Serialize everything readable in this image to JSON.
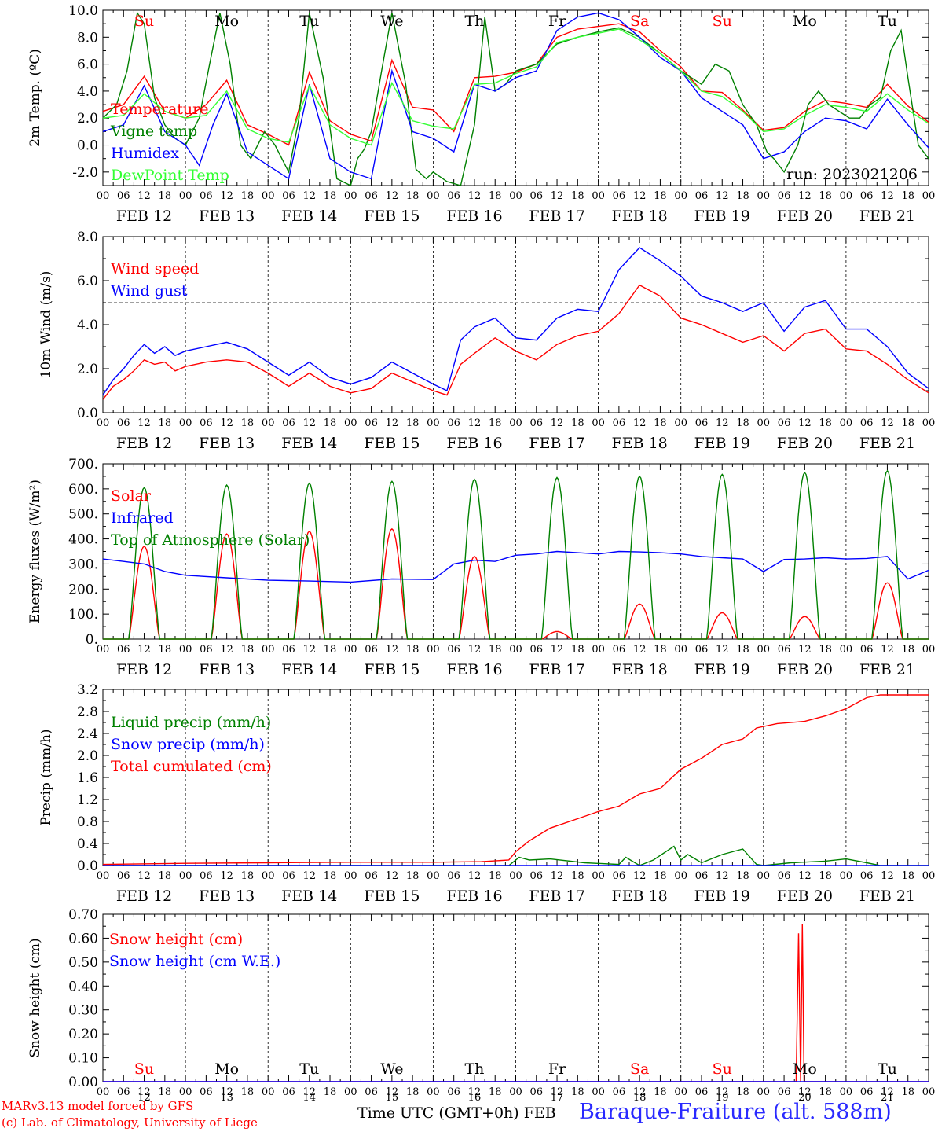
{
  "meta": {
    "run_label": "run: 2023021206",
    "credit_line1": "MARv3.13 model forced by GFS",
    "credit_line2": "(c) Lab. of Climatology, University of Liege",
    "xlabel": "Time UTC (GMT+0h)",
    "month_label": "FEB",
    "station": "Baraque-Fraiture (alt. 588m)"
  },
  "colors": {
    "red": "#ff0000",
    "blue": "#0000ff",
    "green": "#008000",
    "lightgreen": "#33ff33",
    "grey": "#555555",
    "black": "#000000",
    "title_blue": "#2a2aff"
  },
  "chart_data": [
    {
      "type": "line",
      "ylabel": "2m Temp. (ºC)",
      "ylim": [
        -3,
        10
      ],
      "yticks": [
        "-2.0",
        "0.0",
        "2.0",
        "4.0",
        "6.0",
        "8.0",
        "10.0"
      ],
      "reference_line": 0,
      "x_unit": "hours since FEB 12 00 UTC",
      "weekday_labels": [
        {
          "text": "Su",
          "color": "red"
        },
        {
          "text": "Mo",
          "color": "black"
        },
        {
          "text": "Tu",
          "color": "black"
        },
        {
          "text": "We",
          "color": "black"
        },
        {
          "text": "Th",
          "color": "black"
        },
        {
          "text": "Fr",
          "color": "black"
        },
        {
          "text": "Sa",
          "color": "red"
        },
        {
          "text": "Su",
          "color": "red"
        },
        {
          "text": "Mo",
          "color": "black"
        },
        {
          "text": "Tu",
          "color": "black"
        }
      ],
      "series": [
        {
          "name": "Temperature",
          "color": "red",
          "x": [
            0,
            6,
            12,
            18,
            24,
            30,
            36,
            42,
            48,
            54,
            60,
            66,
            72,
            78,
            84,
            90,
            96,
            102,
            108,
            114,
            120,
            126,
            132,
            138,
            144,
            150,
            156,
            162,
            168,
            174,
            180,
            186,
            192,
            198,
            204,
            210,
            216,
            222,
            228,
            234,
            240
          ],
          "y": [
            2.5,
            3.0,
            5.1,
            2.5,
            2.0,
            3.0,
            4.8,
            1.5,
            0.8,
            0.0,
            5.4,
            1.8,
            0.8,
            0.3,
            6.3,
            2.8,
            2.6,
            1.0,
            5.0,
            5.1,
            5.4,
            6.0,
            8.0,
            8.6,
            8.8,
            9.0,
            8.4,
            7.0,
            5.8,
            4.0,
            3.9,
            2.6,
            1.1,
            1.3,
            2.5,
            3.3,
            3.1,
            2.8,
            4.5,
            2.9,
            1.7
          ]
        },
        {
          "name": "Vigne temp",
          "color": "green",
          "x": [
            0,
            4,
            7,
            10,
            12,
            15,
            18,
            21,
            24,
            28,
            31,
            34,
            37,
            40,
            43,
            47,
            50,
            54,
            57,
            60,
            64,
            68,
            72,
            74,
            76,
            78,
            81,
            84,
            88,
            91,
            94,
            96,
            100,
            104,
            108,
            111,
            114,
            117,
            120,
            126,
            132,
            138,
            144,
            150,
            156,
            162,
            168,
            174,
            178,
            182,
            186,
            190,
            193,
            195,
            198,
            202,
            205,
            208,
            211,
            214,
            217,
            220,
            223,
            226,
            229,
            232,
            234,
            237,
            240
          ],
          "y": [
            2.0,
            3.0,
            5.5,
            9.8,
            9.0,
            3.5,
            1.5,
            0.5,
            0.0,
            2.0,
            6.0,
            9.8,
            6.0,
            0.0,
            -1.0,
            1.0,
            0.0,
            -2.0,
            2.0,
            9.8,
            5.0,
            -2.5,
            -3.0,
            -1.0,
            -0.3,
            1.0,
            5.5,
            9.8,
            4.5,
            -1.8,
            -2.5,
            -2.0,
            -2.7,
            -3.0,
            1.5,
            9.5,
            4.0,
            4.5,
            5.5,
            6.0,
            7.5,
            8.0,
            8.4,
            8.7,
            8.0,
            6.8,
            5.5,
            4.5,
            6.0,
            5.5,
            3.0,
            1.5,
            -0.5,
            -1.0,
            -2.0,
            0.0,
            3.0,
            4.0,
            3.0,
            2.5,
            2.0,
            2.0,
            3.0,
            3.5,
            7.0,
            8.5,
            5.0,
            0.0,
            -1.0
          ]
        },
        {
          "name": "Humidex",
          "color": "blue",
          "x": [
            0,
            6,
            12,
            18,
            24,
            28,
            32,
            36,
            42,
            48,
            54,
            60,
            66,
            72,
            78,
            84,
            90,
            96,
            102,
            108,
            114,
            120,
            126,
            132,
            138,
            144,
            150,
            156,
            162,
            168,
            174,
            180,
            186,
            192,
            198,
            204,
            210,
            216,
            222,
            228,
            234,
            240
          ],
          "y": [
            1.0,
            1.5,
            4.4,
            1.0,
            0.0,
            -1.5,
            1.5,
            3.8,
            -0.5,
            -1.5,
            -2.5,
            4.5,
            -1.0,
            -2.0,
            -2.5,
            5.5,
            1.0,
            0.5,
            -0.5,
            4.5,
            4.0,
            5.0,
            5.5,
            8.5,
            9.5,
            9.8,
            9.3,
            8.0,
            6.5,
            5.5,
            3.5,
            2.5,
            1.5,
            -1.0,
            -0.5,
            1.0,
            2.0,
            1.8,
            1.2,
            3.4,
            1.5,
            -0.2
          ]
        },
        {
          "name": "DewPoint Temp",
          "color": "lightgreen",
          "x": [
            0,
            6,
            12,
            18,
            24,
            30,
            36,
            42,
            48,
            54,
            60,
            66,
            72,
            78,
            84,
            90,
            96,
            102,
            108,
            114,
            120,
            126,
            132,
            138,
            144,
            150,
            156,
            162,
            168,
            174,
            180,
            186,
            192,
            198,
            204,
            210,
            216,
            222,
            228,
            234,
            240
          ],
          "y": [
            2.0,
            2.2,
            3.8,
            2.5,
            2.0,
            2.2,
            4.0,
            1.2,
            0.5,
            0.2,
            4.4,
            1.5,
            0.5,
            0.0,
            4.6,
            1.8,
            1.4,
            1.2,
            4.5,
            4.6,
            5.3,
            5.8,
            7.6,
            8.0,
            8.3,
            8.6,
            7.8,
            6.8,
            5.5,
            4.0,
            3.6,
            2.5,
            1.0,
            1.2,
            2.2,
            3.0,
            2.8,
            2.5,
            3.8,
            2.6,
            1.6
          ]
        }
      ],
      "legend": [
        "Temperature",
        "Vigne temp",
        "Humidex",
        "DewPoint Temp"
      ],
      "legend_placement": "left"
    },
    {
      "type": "line",
      "ylabel": "10m Wind (m/s)",
      "ylim": [
        0,
        8
      ],
      "yticks": [
        "0.0",
        "2.0",
        "4.0",
        "6.0",
        "8.0"
      ],
      "reference_line": 5,
      "x_unit": "hours since FEB 12 00 UTC",
      "series": [
        {
          "name": "Wind speed",
          "color": "red",
          "x": [
            0,
            3,
            6,
            9,
            12,
            15,
            18,
            21,
            24,
            30,
            36,
            42,
            48,
            54,
            60,
            66,
            72,
            78,
            84,
            90,
            96,
            100,
            104,
            108,
            114,
            120,
            126,
            132,
            138,
            144,
            150,
            156,
            162,
            168,
            174,
            180,
            186,
            192,
            198,
            204,
            210,
            216,
            222,
            228,
            234,
            240
          ],
          "y": [
            0.6,
            1.2,
            1.5,
            1.9,
            2.4,
            2.2,
            2.3,
            1.9,
            2.1,
            2.3,
            2.4,
            2.3,
            1.8,
            1.2,
            1.8,
            1.2,
            0.9,
            1.1,
            1.8,
            1.4,
            1.0,
            0.8,
            2.2,
            2.7,
            3.4,
            2.8,
            2.4,
            3.1,
            3.5,
            3.7,
            4.5,
            5.8,
            5.3,
            4.3,
            4.0,
            3.6,
            3.2,
            3.5,
            2.8,
            3.6,
            3.8,
            2.9,
            2.8,
            2.2,
            1.5,
            0.9
          ]
        },
        {
          "name": "Wind gust",
          "color": "blue",
          "x": [
            0,
            3,
            6,
            9,
            12,
            15,
            18,
            21,
            24,
            30,
            36,
            42,
            48,
            54,
            60,
            66,
            72,
            78,
            84,
            90,
            96,
            100,
            104,
            108,
            114,
            120,
            126,
            132,
            138,
            144,
            150,
            156,
            162,
            168,
            174,
            180,
            186,
            192,
            198,
            204,
            210,
            216,
            222,
            228,
            234,
            240
          ],
          "y": [
            0.8,
            1.5,
            2.0,
            2.6,
            3.1,
            2.7,
            3.0,
            2.6,
            2.8,
            3.0,
            3.2,
            2.9,
            2.3,
            1.7,
            2.3,
            1.6,
            1.3,
            1.6,
            2.3,
            1.8,
            1.3,
            1.0,
            3.3,
            3.9,
            4.3,
            3.4,
            3.3,
            4.3,
            4.7,
            4.6,
            6.5,
            7.5,
            6.9,
            6.2,
            5.3,
            5.0,
            4.6,
            5.0,
            3.7,
            4.8,
            5.1,
            3.8,
            3.8,
            3.0,
            1.8,
            1.1
          ]
        }
      ],
      "legend": [
        "Wind speed",
        "Wind gust"
      ],
      "legend_placement": "top-left"
    },
    {
      "type": "line",
      "ylabel": "Energy fluxes (W/m²)",
      "ylim": [
        0,
        700
      ],
      "yticks": [
        "0.",
        "100.",
        "200.",
        "300.",
        "400.",
        "500.",
        "600.",
        "700."
      ],
      "x_unit": "hours since FEB 12 00 UTC",
      "series": [
        {
          "name": "Solar",
          "color": "red",
          "daily_peak": [
            370,
            420,
            430,
            440,
            330,
            30,
            140,
            105,
            90,
            225
          ]
        },
        {
          "name": "Infrared",
          "color": "blue",
          "x": [
            0,
            6,
            12,
            18,
            24,
            36,
            48,
            60,
            72,
            84,
            96,
            102,
            108,
            114,
            120,
            126,
            132,
            138,
            144,
            150,
            156,
            162,
            168,
            174,
            180,
            186,
            192,
            198,
            204,
            210,
            216,
            222,
            228,
            234,
            240
          ],
          "y": [
            320,
            310,
            300,
            270,
            255,
            245,
            235,
            232,
            228,
            240,
            238,
            300,
            315,
            310,
            335,
            340,
            350,
            345,
            340,
            350,
            348,
            345,
            340,
            330,
            325,
            320,
            270,
            318,
            320,
            325,
            320,
            322,
            330,
            240,
            275
          ]
        },
        {
          "name": "Top of Atmosphere (Solar)",
          "color": "green",
          "daily_peak": [
            605,
            615,
            622,
            630,
            638,
            645,
            650,
            658,
            665,
            672
          ]
        }
      ],
      "daylight_hours": [
        7.5,
        16.5
      ],
      "legend": [
        "Solar",
        "Infrared",
        "Top of Atmosphere (Solar)"
      ],
      "legend_placement": "top-left"
    },
    {
      "type": "line",
      "ylabel": "Precip (mm/h)",
      "ylim": [
        0,
        3.2
      ],
      "yticks": [
        "0.0",
        "0.4",
        "0.8",
        "1.2",
        "1.6",
        "2.0",
        "2.4",
        "2.8",
        "3.2"
      ],
      "x_unit": "hours since FEB 12 00 UTC",
      "series": [
        {
          "name": "Liquid precip (mm/h)",
          "color": "green",
          "x": [
            0,
            96,
            118,
            121,
            124,
            130,
            140,
            150,
            152,
            156,
            160,
            166,
            168,
            170,
            174,
            180,
            186,
            190,
            192,
            200,
            210,
            216,
            222,
            226,
            240
          ],
          "y": [
            0,
            0,
            0,
            0.15,
            0.1,
            0.12,
            0.05,
            0.02,
            0.15,
            0.0,
            0.1,
            0.35,
            0.1,
            0.2,
            0.05,
            0.2,
            0.3,
            0.02,
            0.0,
            0.05,
            0.08,
            0.12,
            0.05,
            0.0,
            0
          ]
        },
        {
          "name": "Snow precip (mm/h)",
          "color": "blue",
          "x": [
            0,
            240
          ],
          "y": [
            0,
            0
          ]
        },
        {
          "name": "Total cumulated (cm)",
          "color": "red",
          "x": [
            0,
            24,
            48,
            72,
            96,
            110,
            118,
            120,
            124,
            130,
            138,
            144,
            150,
            156,
            162,
            168,
            174,
            180,
            186,
            190,
            196,
            204,
            210,
            216,
            222,
            226,
            232,
            240
          ],
          "y": [
            0.02,
            0.04,
            0.05,
            0.06,
            0.06,
            0.07,
            0.1,
            0.25,
            0.45,
            0.68,
            0.85,
            0.98,
            1.08,
            1.3,
            1.4,
            1.75,
            1.95,
            2.2,
            2.3,
            2.5,
            2.58,
            2.62,
            2.72,
            2.85,
            3.05,
            3.1,
            3.1,
            3.1
          ]
        }
      ],
      "legend": [
        "Liquid precip (mm/h)",
        "Snow precip (mm/h)",
        "Total cumulated (cm)"
      ],
      "legend_placement": "top-left"
    },
    {
      "type": "line",
      "ylabel": "Snow height (cm)",
      "ylim": [
        0,
        0.7
      ],
      "yticks": [
        "0.00",
        "0.10",
        "0.20",
        "0.30",
        "0.40",
        "0.50",
        "0.60",
        "0.70"
      ],
      "x_unit": "hours since FEB 12 00 UTC",
      "series": [
        {
          "name": "Snow height (cm)",
          "color": "red",
          "x": [
            0,
            200,
            201.5,
            202.2,
            202.8,
            203.3,
            203.8,
            204.3,
            205,
            240
          ],
          "y": [
            0,
            0,
            0.0,
            0.62,
            0.0,
            0.66,
            0.0,
            0.0,
            0,
            0
          ]
        },
        {
          "name": "Snow height (cm W.E.)",
          "color": "blue",
          "x": [
            0,
            240
          ],
          "y": [
            0,
            0
          ]
        }
      ],
      "legend": [
        "Snow height (cm)",
        "Snow height (cm W.E.)"
      ],
      "legend_placement": "top-left"
    }
  ],
  "xaxis": {
    "hour_ticks": [
      "00",
      "06",
      "12",
      "18"
    ],
    "final_tick": "00",
    "day_labels": [
      "FEB 12",
      "FEB 13",
      "FEB 14",
      "FEB 15",
      "FEB 16",
      "FEB 17",
      "FEB 18",
      "FEB 19",
      "FEB 20",
      "FEB 21"
    ],
    "bottom_day_numbers": [
      "12",
      "13",
      "14",
      "15",
      "16",
      "17",
      "18",
      "19",
      "20",
      "21"
    ]
  }
}
